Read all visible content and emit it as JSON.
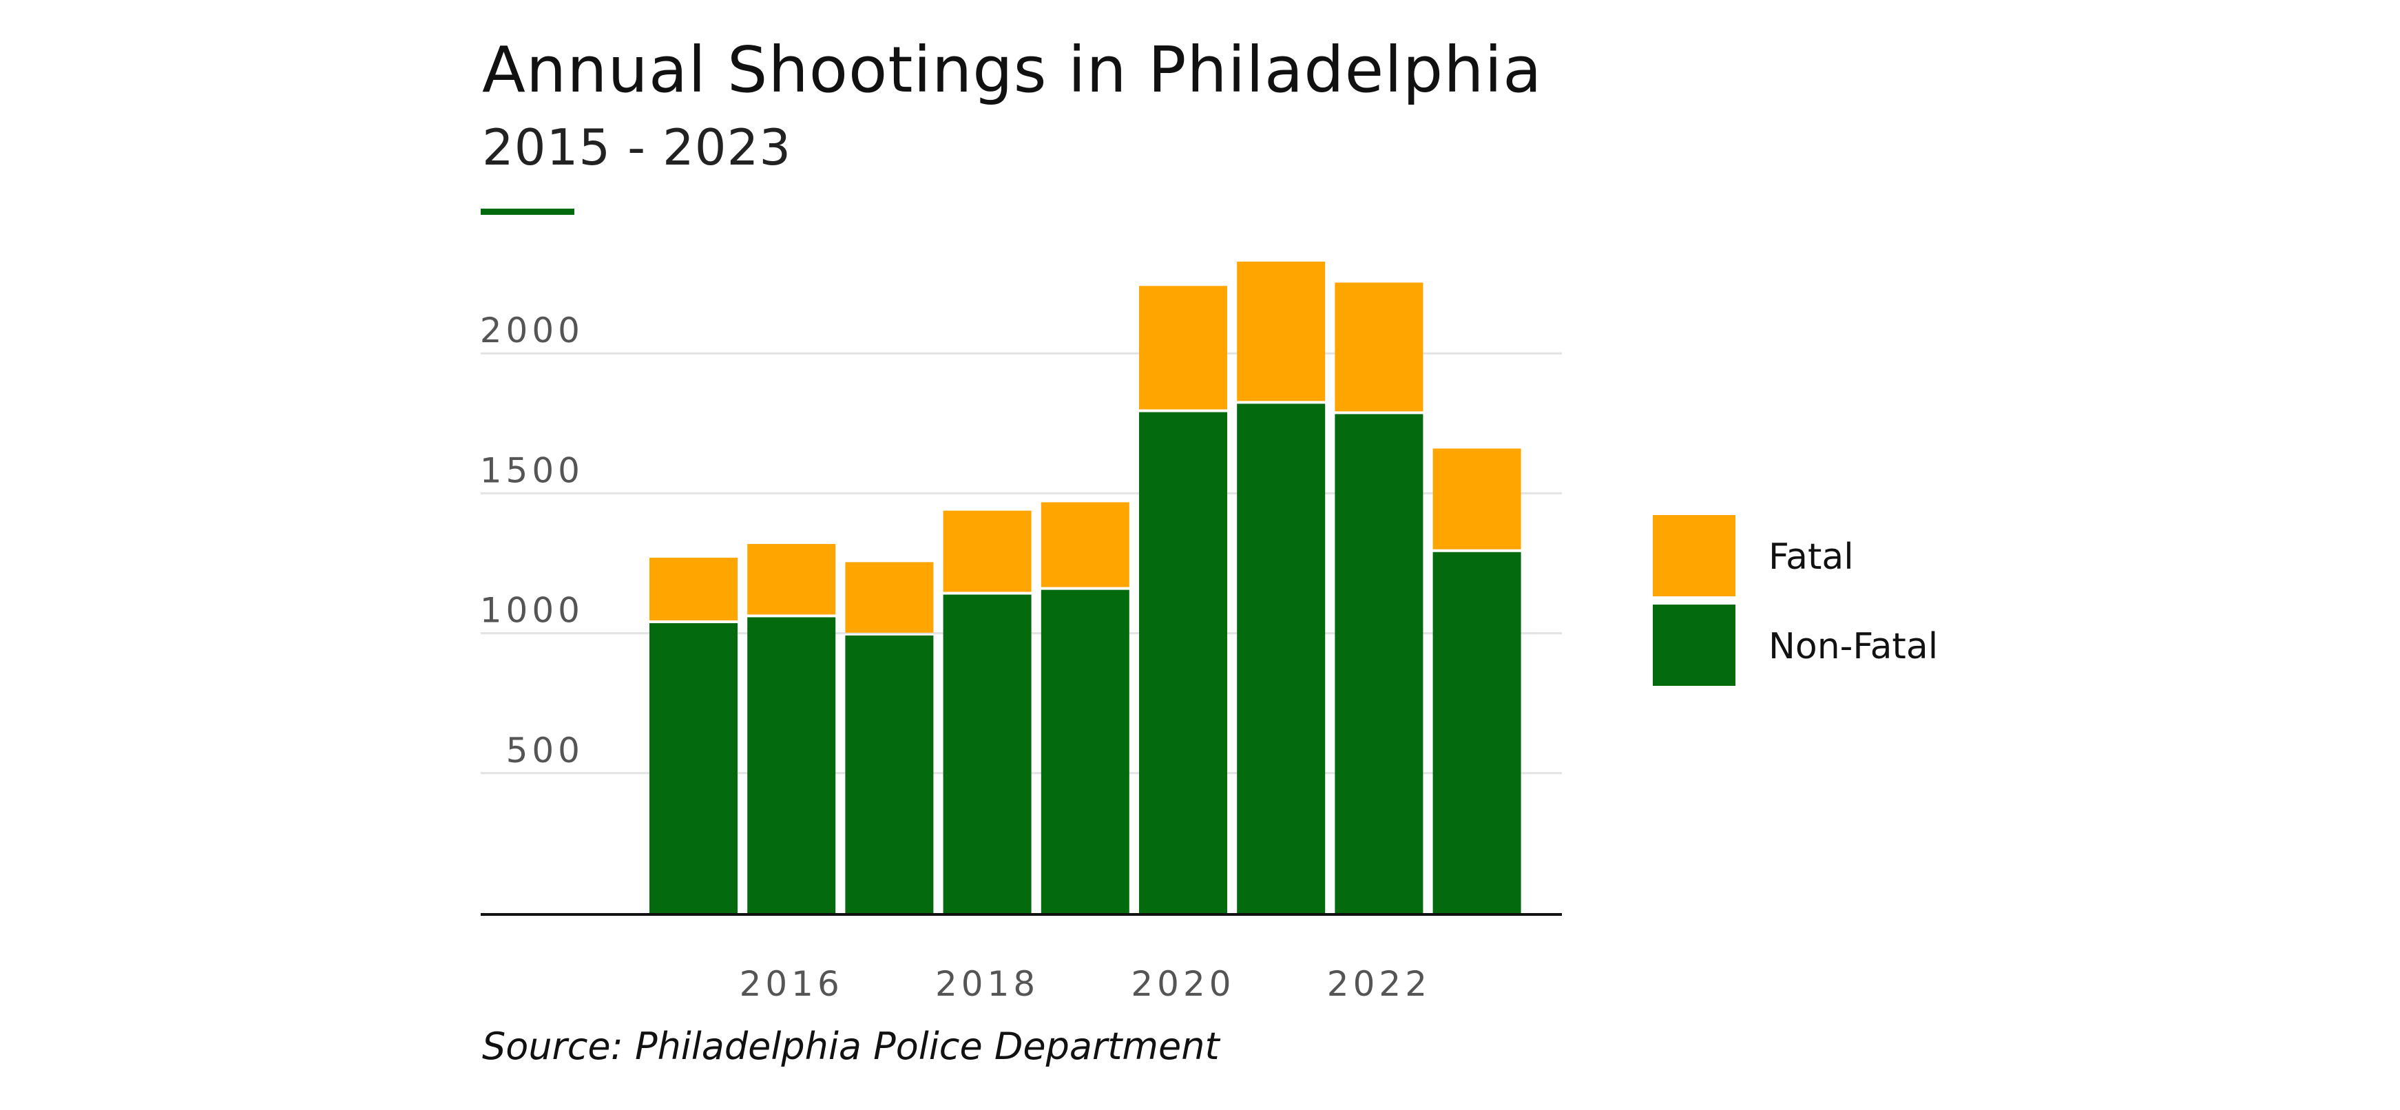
{
  "colors": {
    "fatal": "#FFA500",
    "non_fatal": "#046A0E",
    "accent": "#046A0E",
    "grid": "#e3e3e3",
    "axis": "#111111"
  },
  "chart_data": {
    "type": "bar",
    "stacked": true,
    "title": "Annual Shootings in Philadelphia",
    "subtitle": "2015 - 2023",
    "source": "Source: Philadelphia Police Department",
    "categories": [
      "2015",
      "2016",
      "2017",
      "2018",
      "2019",
      "2020",
      "2021",
      "2022",
      "2023"
    ],
    "series": [
      {
        "name": "Non-Fatal",
        "color": "#046A0E",
        "values": [
          1036,
          1057,
          992,
          1138,
          1155,
          1790,
          1820,
          1783,
          1290
        ]
      },
      {
        "name": "Fatal",
        "color": "#FFA500",
        "values": [
          234,
          262,
          262,
          300,
          313,
          451,
          508,
          470,
          370
        ]
      }
    ],
    "y_ticks": [
      500,
      1000,
      1500,
      2000
    ],
    "x_ticks": [
      "2016",
      "2018",
      "2020",
      "2022"
    ],
    "ylim": [
      0,
      2500
    ],
    "xlabel": "",
    "ylabel": "",
    "grid": true,
    "legend_position": "right"
  }
}
